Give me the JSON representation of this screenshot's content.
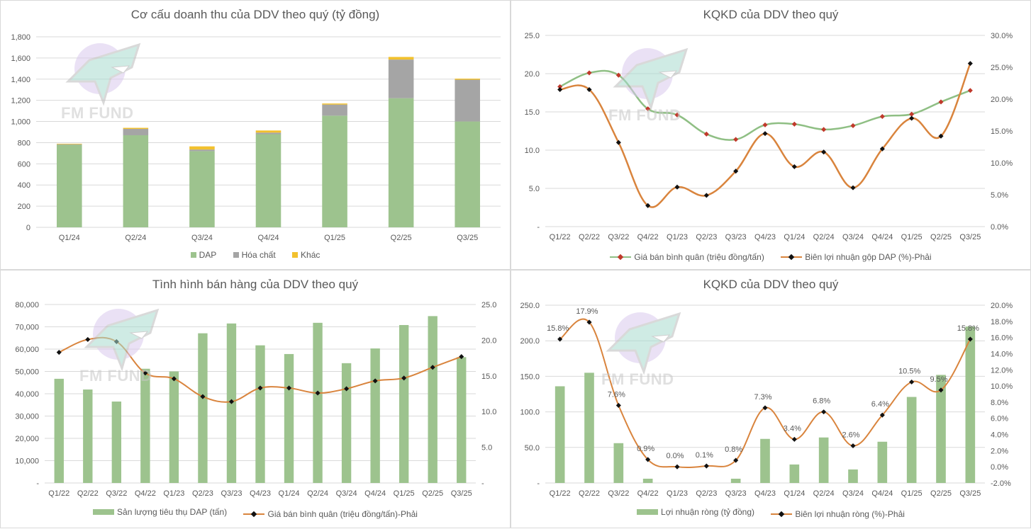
{
  "watermark": "FM FUND",
  "colors": {
    "dap_green": "#9dc38e",
    "chemical_gray": "#a5a5a5",
    "other_yellow": "#f2c12e",
    "line_green": "#8fbf84",
    "line_orange": "#d9843d",
    "marker_red": "#c0392b",
    "marker_black": "#111111",
    "grid": "#d9d9d9",
    "text": "#595959"
  },
  "chart_data": [
    {
      "id": "revenue_structure",
      "type": "bar",
      "stacked": true,
      "title": "Cơ cấu doanh thu của DDV theo quý (tỷ đồng)",
      "categories": [
        "Q1/24",
        "Q2/24",
        "Q3/24",
        "Q4/24",
        "Q1/25",
        "Q2/25",
        "Q3/25"
      ],
      "series": [
        {
          "name": "DAP",
          "values": [
            780,
            870,
            720,
            880,
            1055,
            1220,
            1000
          ]
        },
        {
          "name": "Hóa chất",
          "values": [
            5,
            60,
            15,
            15,
            105,
            365,
            395
          ]
        },
        {
          "name": "Khác",
          "values": [
            5,
            10,
            30,
            20,
            10,
            25,
            10
          ]
        }
      ],
      "ylim": [
        0,
        1800
      ],
      "yticks": [
        "0",
        "200",
        "400",
        "600",
        "800",
        "1,000",
        "1,200",
        "1,400",
        "1,600",
        "1,800"
      ],
      "legend_position": "bottom",
      "grid": true
    },
    {
      "id": "kqkd_price_margin",
      "type": "line",
      "title": "KQKD của DDV theo quý",
      "categories": [
        "Q1/22",
        "Q2/22",
        "Q3/22",
        "Q4/22",
        "Q1/23",
        "Q2/23",
        "Q3/23",
        "Q4/23",
        "Q1/24",
        "Q2/24",
        "Q3/24",
        "Q4/24",
        "Q1/25",
        "Q2/25",
        "Q3/25"
      ],
      "series": [
        {
          "name": "Giá bán bình quân (triệu đồng/tấn)",
          "axis": "left",
          "values": [
            18.3,
            20.1,
            19.8,
            15.4,
            14.6,
            12.1,
            11.4,
            13.3,
            13.4,
            12.7,
            13.2,
            14.4,
            14.7,
            16.3,
            17.8
          ]
        },
        {
          "name": "Biên lợi nhuận gộp DAP (%)-Phải",
          "axis": "right",
          "values": [
            21.5,
            21.5,
            13.2,
            3.3,
            6.2,
            4.9,
            8.7,
            14.6,
            9.4,
            11.7,
            6.1,
            12.2,
            17.0,
            14.2,
            25.6
          ]
        }
      ],
      "ylim_left": [
        0,
        25
      ],
      "ylim_right": [
        0,
        30
      ],
      "yticks_left": [
        "-",
        "5.0",
        "10.0",
        "15.0",
        "20.0",
        "25.0"
      ],
      "yticks_right": [
        "0.0%",
        "5.0%",
        "10.0%",
        "15.0%",
        "20.0%",
        "25.0%",
        "30.0%"
      ],
      "legend_position": "bottom",
      "grid": true
    },
    {
      "id": "sales_volume",
      "type": "bar",
      "title": "Tình hình bán hàng của DDV theo quý",
      "categories": [
        "Q1/22",
        "Q2/22",
        "Q3/22",
        "Q4/22",
        "Q1/23",
        "Q2/23",
        "Q3/23",
        "Q4/23",
        "Q1/24",
        "Q2/24",
        "Q3/24",
        "Q4/24",
        "Q1/25",
        "Q2/25",
        "Q3/25"
      ],
      "series": [
        {
          "name": "Sản lượng tiêu thụ DAP (tấn)",
          "axis": "left",
          "kind": "bar",
          "values": [
            46700,
            41900,
            36500,
            51200,
            50000,
            67100,
            71500,
            61700,
            57800,
            71800,
            53700,
            60300,
            70800,
            74800,
            56400
          ]
        },
        {
          "name": "Giá bán bình quân (triệu đồng/tấn)-Phải",
          "axis": "right",
          "kind": "line",
          "values": [
            18.3,
            20.1,
            19.8,
            15.4,
            14.6,
            12.1,
            11.4,
            13.3,
            13.3,
            12.6,
            13.2,
            14.3,
            14.7,
            16.2,
            17.7
          ]
        }
      ],
      "ylim_left": [
        0,
        80000
      ],
      "ylim_right": [
        0,
        25
      ],
      "yticks_left": [
        "-",
        "10,000",
        "20,000",
        "30,000",
        "40,000",
        "50,000",
        "60,000",
        "70,000",
        "80,000"
      ],
      "yticks_right": [
        "-",
        "5.0",
        "10.0",
        "15.0",
        "20.0",
        "25.0"
      ],
      "legend_position": "bottom",
      "grid": true
    },
    {
      "id": "net_profit",
      "type": "bar",
      "title": "KQKD của DDV theo quý",
      "categories": [
        "Q1/22",
        "Q2/22",
        "Q3/22",
        "Q4/22",
        "Q1/23",
        "Q2/23",
        "Q3/23",
        "Q4/23",
        "Q1/24",
        "Q2/24",
        "Q3/24",
        "Q4/24",
        "Q1/25",
        "Q2/25",
        "Q3/25"
      ],
      "series": [
        {
          "name": "Lợi nhuận ròng (tỷ đồng)",
          "axis": "left",
          "kind": "bar",
          "values": [
            136,
            155,
            56,
            6,
            0,
            0,
            6,
            62,
            26,
            64,
            19,
            58,
            121,
            152,
            220
          ]
        },
        {
          "name": "Biên lợi nhuận ròng (%)-Phải",
          "axis": "right",
          "kind": "line",
          "values": [
            15.8,
            17.9,
            7.6,
            0.9,
            0.0,
            0.1,
            0.8,
            7.3,
            3.4,
            6.8,
            2.6,
            6.4,
            10.5,
            9.5,
            15.8
          ],
          "labels": [
            "15.8%",
            "17.9%",
            "7.6%",
            "0.9%",
            "0.0%",
            "0.1%",
            "0.8%",
            "7.3%",
            "3.4%",
            "6.8%",
            "2.6%",
            "6.4%",
            "10.5%",
            "9.5%",
            "15.8%"
          ]
        }
      ],
      "ylim_left": [
        0,
        250
      ],
      "ylim_right": [
        -2,
        20
      ],
      "yticks_left": [
        "-",
        "50.0",
        "100.0",
        "150.0",
        "200.0",
        "250.0"
      ],
      "yticks_right": [
        "-2.0%",
        "0.0%",
        "2.0%",
        "4.0%",
        "6.0%",
        "8.0%",
        "10.0%",
        "12.0%",
        "14.0%",
        "16.0%",
        "18.0%",
        "20.0%"
      ],
      "legend_position": "bottom",
      "grid": true
    }
  ]
}
